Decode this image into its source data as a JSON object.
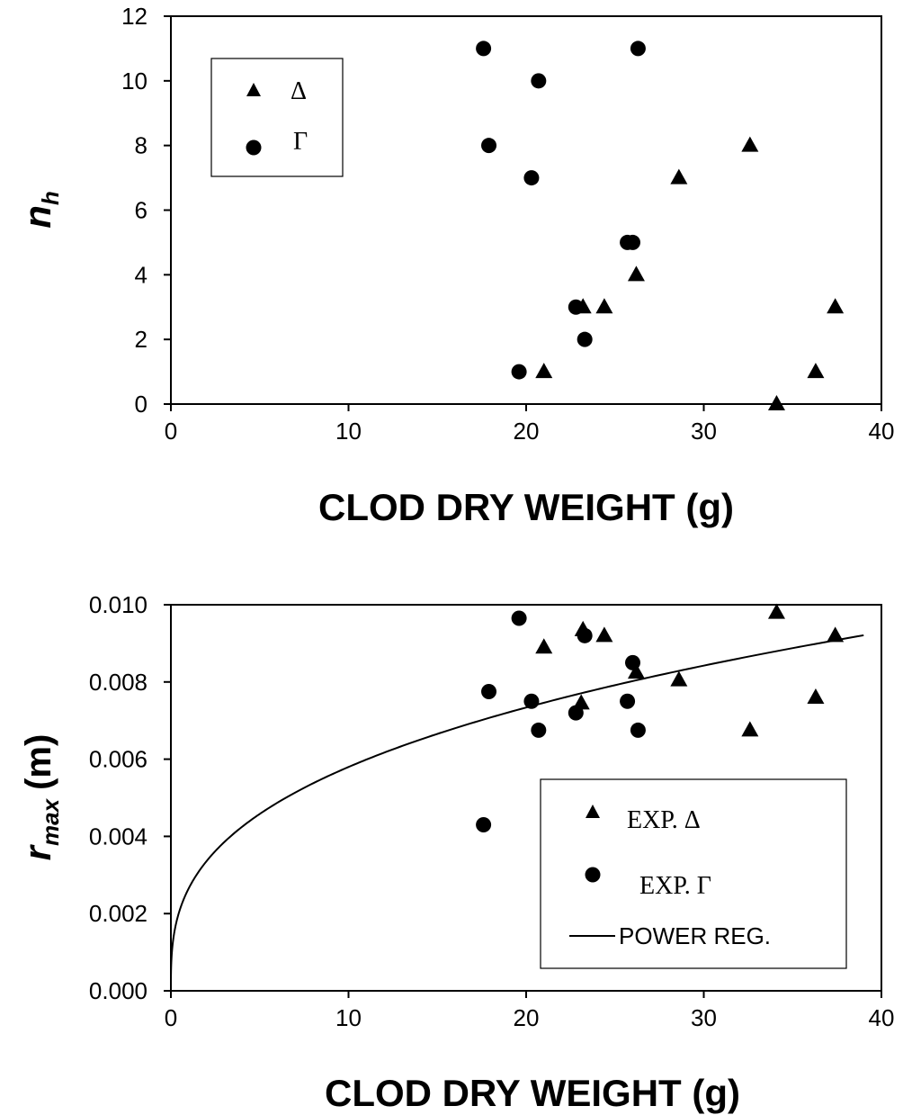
{
  "chart_data": [
    {
      "type": "scatter",
      "xlabel": "CLOD DRY WEIGHT (g)",
      "ylabel_main": "n",
      "ylabel_sub": "h",
      "xlim": [
        0,
        40
      ],
      "ylim": [
        0,
        12
      ],
      "xticks": [
        "0",
        "10",
        "20",
        "30",
        "40"
      ],
      "yticks": [
        "0",
        "2",
        "4",
        "6",
        "8",
        "10",
        "12"
      ],
      "grid": false,
      "legend_position": "top-left",
      "series": [
        {
          "name": "Δ",
          "marker": "triangle",
          "points": [
            [
              21.0,
              1
            ],
            [
              23.2,
              3
            ],
            [
              24.4,
              3
            ],
            [
              26.2,
              4
            ],
            [
              28.6,
              7
            ],
            [
              32.6,
              8
            ],
            [
              34.1,
              0
            ],
            [
              36.3,
              1
            ],
            [
              37.4,
              3
            ]
          ]
        },
        {
          "name": "Γ",
          "marker": "circle",
          "points": [
            [
              17.6,
              11
            ],
            [
              17.9,
              8
            ],
            [
              19.6,
              1
            ],
            [
              20.3,
              7
            ],
            [
              20.7,
              10
            ],
            [
              22.8,
              3
            ],
            [
              23.3,
              2
            ],
            [
              25.7,
              5
            ],
            [
              26.0,
              5
            ],
            [
              26.3,
              11
            ]
          ]
        }
      ]
    },
    {
      "type": "scatter",
      "xlabel": "CLOD DRY WEIGHT (g)",
      "ylabel_main": "r",
      "ylabel_sub": "max",
      "ylabel_unit": "(m)",
      "xlim": [
        0,
        40
      ],
      "ylim": [
        0,
        0.01
      ],
      "xticks": [
        "0",
        "10",
        "20",
        "30",
        "40"
      ],
      "yticks": [
        "0.000",
        "0.002",
        "0.004",
        "0.006",
        "0.008",
        "0.010"
      ],
      "grid": false,
      "legend_position": "bottom-right",
      "series": [
        {
          "name": "EXP. Δ",
          "marker": "triangle",
          "points": [
            [
              21.0,
              0.0089
            ],
            [
              23.2,
              0.00935
            ],
            [
              23.1,
              0.00745
            ],
            [
              24.4,
              0.0092
            ],
            [
              26.2,
              0.00825
            ],
            [
              28.6,
              0.00805
            ],
            [
              32.6,
              0.00675
            ],
            [
              34.1,
              0.0098
            ],
            [
              36.3,
              0.0076
            ],
            [
              37.4,
              0.0092
            ]
          ]
        },
        {
          "name": "EXP. Γ",
          "marker": "circle",
          "points": [
            [
              17.6,
              0.0043
            ],
            [
              17.9,
              0.00775
            ],
            [
              19.6,
              0.00965
            ],
            [
              20.3,
              0.0075
            ],
            [
              20.7,
              0.00675
            ],
            [
              22.8,
              0.0072
            ],
            [
              23.3,
              0.0092
            ],
            [
              25.7,
              0.0075
            ],
            [
              26.0,
              0.0085
            ],
            [
              26.3,
              0.00675
            ]
          ]
        },
        {
          "name": "POWER REG.",
          "marker": "line",
          "coef": 0.00265,
          "exponent": 0.34,
          "x_range": [
            0,
            39
          ]
        }
      ]
    }
  ]
}
